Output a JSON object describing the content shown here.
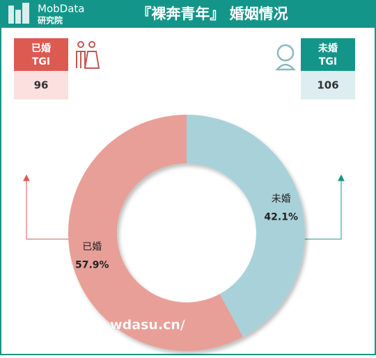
{
  "header": {
    "logo": "MobData",
    "logo_sub": "研究院",
    "title": "『裸奔青年』 婚姻情况"
  },
  "tgi": [
    {
      "label": "已婚",
      "sub": "TGI",
      "value": 96
    },
    {
      "label": "未婚",
      "sub": "TGI",
      "value": 106
    }
  ],
  "chart_data": {
    "type": "donut",
    "categories": [
      "未婚",
      "已婚"
    ],
    "values": [
      42.1,
      57.9
    ],
    "value_labels": [
      "42.1%",
      "57.9%"
    ],
    "colors": [
      "#a9d1da",
      "#e89f98"
    ]
  },
  "watermark": "wdasu.cn/"
}
